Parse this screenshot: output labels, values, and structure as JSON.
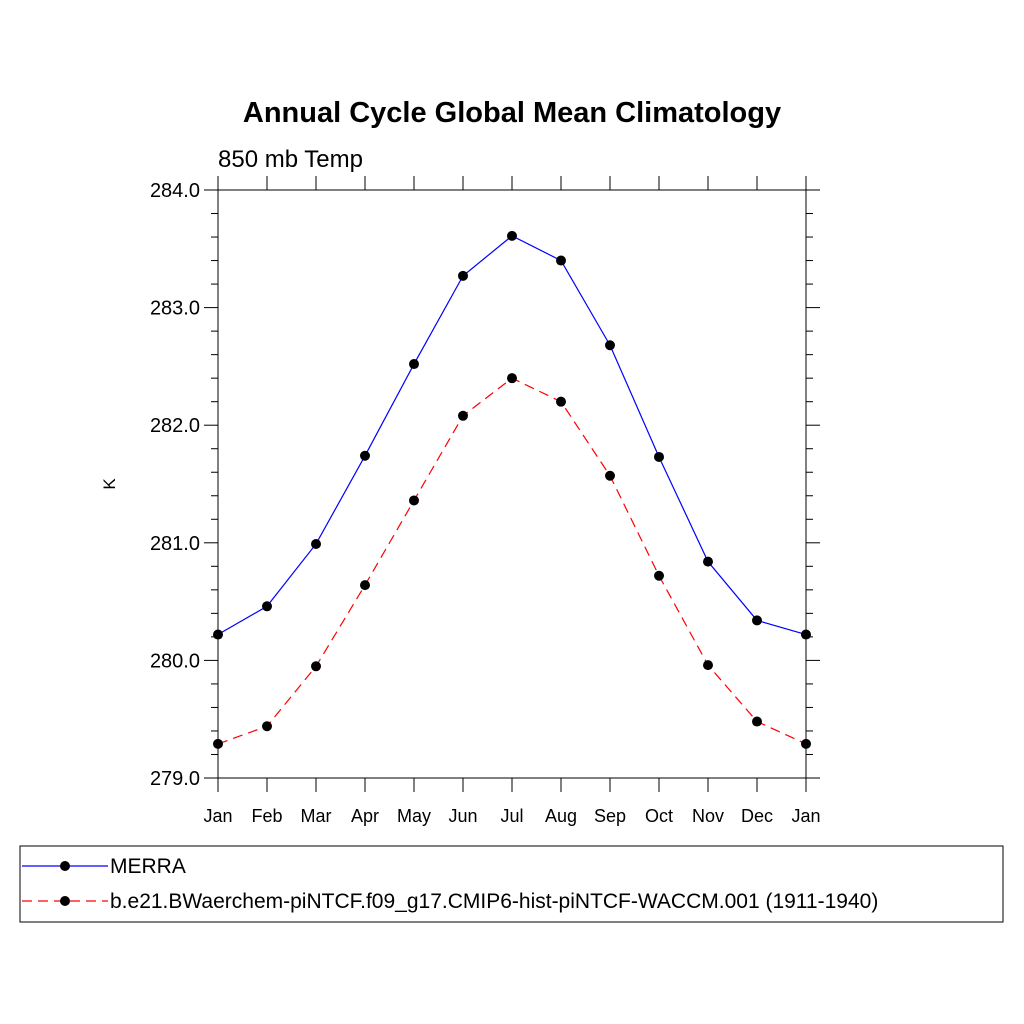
{
  "chart_data": {
    "type": "line",
    "title": "Annual Cycle Global Mean Climatology",
    "subtitle": "850 mb Temp",
    "xlabel": "",
    "ylabel": "K",
    "categories": [
      "Jan",
      "Feb",
      "Mar",
      "Apr",
      "May",
      "Jun",
      "Jul",
      "Aug",
      "Sep",
      "Oct",
      "Nov",
      "Dec",
      "Jan"
    ],
    "ylim": [
      279.0,
      284.0
    ],
    "yticks": [
      "279.0",
      "280.0",
      "281.0",
      "282.0",
      "283.0",
      "284.0"
    ],
    "grid": false,
    "legend_placement": "bottom",
    "series": [
      {
        "name": "MERRA",
        "color": "#0000ff",
        "style": "solid",
        "values": [
          280.22,
          280.46,
          280.99,
          281.74,
          282.52,
          283.27,
          283.61,
          283.4,
          282.68,
          281.73,
          280.84,
          280.34,
          280.22
        ]
      },
      {
        "name": "b.e21.BWaerchem-piNTCF.f09_g17.CMIP6-hist-piNTCF-WACCM.001 (1911-1940)",
        "color": "#ff0000",
        "style": "dashed",
        "values": [
          279.29,
          279.44,
          279.95,
          280.64,
          281.36,
          282.08,
          282.4,
          282.2,
          281.57,
          280.72,
          279.96,
          279.48,
          279.29
        ]
      }
    ]
  }
}
